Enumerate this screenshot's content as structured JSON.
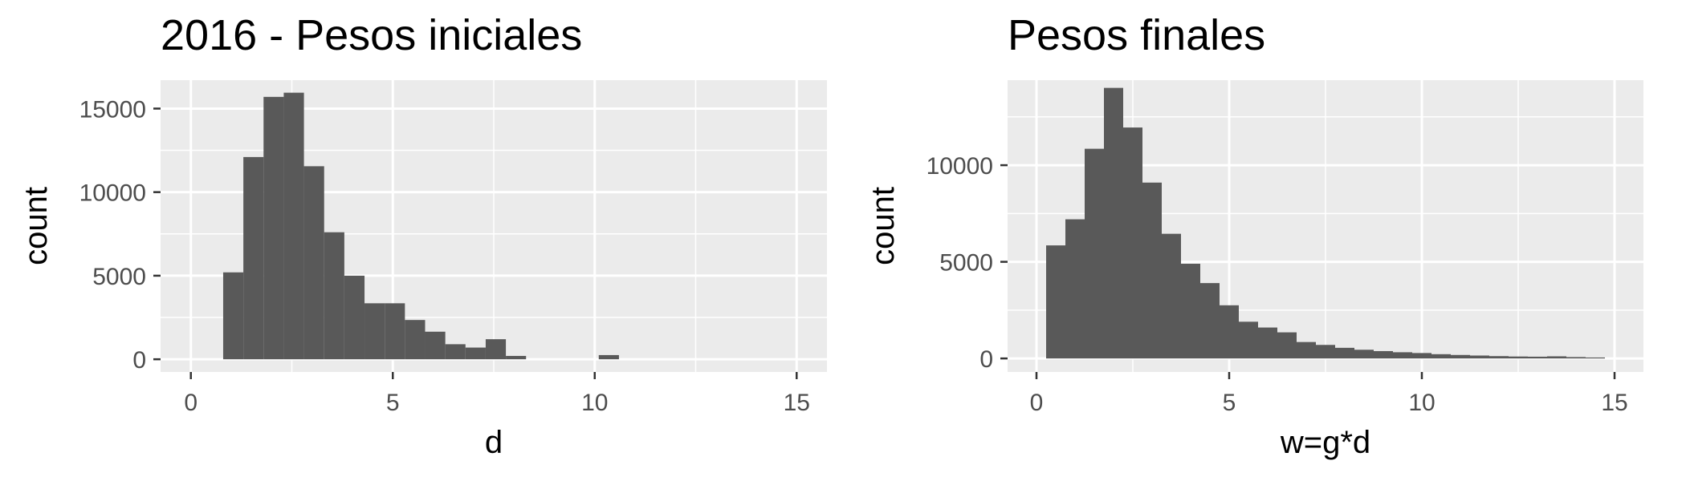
{
  "chart_data": [
    {
      "type": "bar",
      "title": "2016 - Pesos iniciales",
      "xlabel": "d",
      "ylabel": "count",
      "xlim": [
        -0.75,
        15.75
      ],
      "ylim": [
        -760,
        16700
      ],
      "xticks": [
        0,
        5,
        10,
        15
      ],
      "yticks": [
        0,
        5000,
        10000,
        15000
      ],
      "x_tick_labels": [
        "0",
        "5",
        "10",
        "15"
      ],
      "y_tick_labels": [
        "0",
        "5000",
        "10000",
        "15000"
      ],
      "bin_width": 0.5,
      "bars": [
        {
          "x0": 0.8,
          "x1": 1.3,
          "count": 5200
        },
        {
          "x0": 1.3,
          "x1": 1.8,
          "count": 12100
        },
        {
          "x0": 1.8,
          "x1": 2.3,
          "count": 15700
        },
        {
          "x0": 2.3,
          "x1": 2.8,
          "count": 15950
        },
        {
          "x0": 2.8,
          "x1": 3.3,
          "count": 11550
        },
        {
          "x0": 3.3,
          "x1": 3.8,
          "count": 7600
        },
        {
          "x0": 3.8,
          "x1": 4.3,
          "count": 5000
        },
        {
          "x0": 4.3,
          "x1": 4.8,
          "count": 3350
        },
        {
          "x0": 4.8,
          "x1": 5.3,
          "count": 3350
        },
        {
          "x0": 5.3,
          "x1": 5.8,
          "count": 2350
        },
        {
          "x0": 5.8,
          "x1": 6.3,
          "count": 1650
        },
        {
          "x0": 6.3,
          "x1": 6.8,
          "count": 900
        },
        {
          "x0": 6.8,
          "x1": 7.3,
          "count": 700
        },
        {
          "x0": 7.3,
          "x1": 7.8,
          "count": 1200
        },
        {
          "x0": 7.8,
          "x1": 8.3,
          "count": 200
        },
        {
          "x0": 10.1,
          "x1": 10.6,
          "count": 250
        }
      ]
    },
    {
      "type": "bar",
      "title": "Pesos finales",
      "xlabel": "w=g*d",
      "ylabel": "count",
      "xlim": [
        -0.75,
        15.75
      ],
      "ylim": [
        -700,
        14400
      ],
      "xticks": [
        0,
        5,
        10,
        15
      ],
      "yticks": [
        0,
        5000,
        10000
      ],
      "x_tick_labels": [
        "0",
        "5",
        "10",
        "15"
      ],
      "y_tick_labels": [
        "0",
        "5000",
        "10000"
      ],
      "bin_width": 0.5,
      "bars": [
        {
          "x0": 0.25,
          "x1": 0.75,
          "count": 5850
        },
        {
          "x0": 0.75,
          "x1": 1.25,
          "count": 7200
        },
        {
          "x0": 1.25,
          "x1": 1.75,
          "count": 10850
        },
        {
          "x0": 1.75,
          "x1": 2.25,
          "count": 14000
        },
        {
          "x0": 2.25,
          "x1": 2.75,
          "count": 11950
        },
        {
          "x0": 2.75,
          "x1": 3.25,
          "count": 9100
        },
        {
          "x0": 3.25,
          "x1": 3.75,
          "count": 6450
        },
        {
          "x0": 3.75,
          "x1": 4.25,
          "count": 4900
        },
        {
          "x0": 4.25,
          "x1": 4.75,
          "count": 3900
        },
        {
          "x0": 4.75,
          "x1": 5.25,
          "count": 2750
        },
        {
          "x0": 5.25,
          "x1": 5.75,
          "count": 1900
        },
        {
          "x0": 5.75,
          "x1": 6.25,
          "count": 1600
        },
        {
          "x0": 6.25,
          "x1": 6.75,
          "count": 1350
        },
        {
          "x0": 6.75,
          "x1": 7.25,
          "count": 850
        },
        {
          "x0": 7.25,
          "x1": 7.75,
          "count": 700
        },
        {
          "x0": 7.75,
          "x1": 8.25,
          "count": 550
        },
        {
          "x0": 8.25,
          "x1": 8.75,
          "count": 450
        },
        {
          "x0": 8.75,
          "x1": 9.25,
          "count": 380
        },
        {
          "x0": 9.25,
          "x1": 9.75,
          "count": 320
        },
        {
          "x0": 9.75,
          "x1": 10.25,
          "count": 280
        },
        {
          "x0": 10.25,
          "x1": 10.75,
          "count": 220
        },
        {
          "x0": 10.75,
          "x1": 11.25,
          "count": 180
        },
        {
          "x0": 11.25,
          "x1": 11.75,
          "count": 150
        },
        {
          "x0": 11.75,
          "x1": 12.25,
          "count": 120
        },
        {
          "x0": 12.25,
          "x1": 12.75,
          "count": 100
        },
        {
          "x0": 12.75,
          "x1": 13.25,
          "count": 90
        },
        {
          "x0": 13.25,
          "x1": 13.75,
          "count": 110
        },
        {
          "x0": 13.75,
          "x1": 14.25,
          "count": 70
        },
        {
          "x0": 14.25,
          "x1": 14.75,
          "count": 50
        }
      ]
    }
  ],
  "style": {
    "bar_fill": "#595959",
    "panel_fill": "#ebebeb",
    "grid_color": "#ffffff",
    "tick_label_color": "#4d4d4d"
  }
}
